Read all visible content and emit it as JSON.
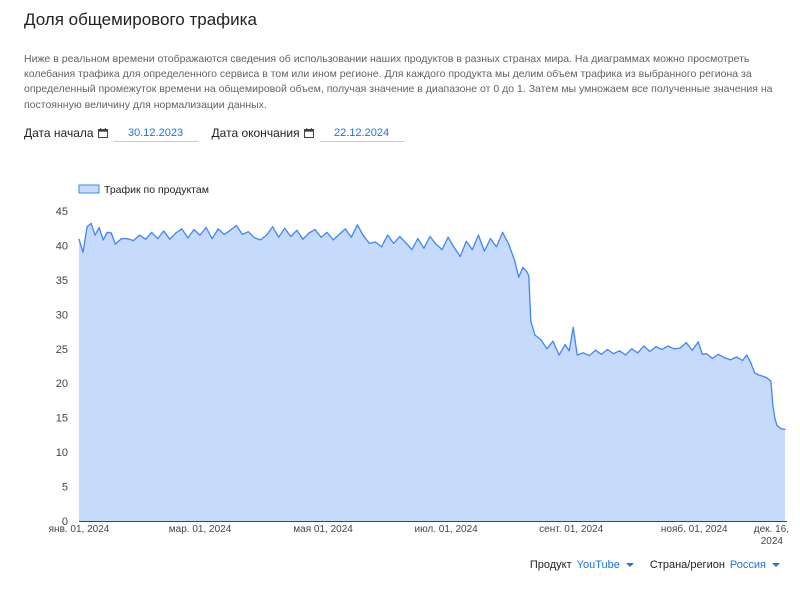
{
  "header": {
    "title": "Доля общемирового трафика",
    "description": "Ниже в реальном времени отображаются сведения об использовании наших продуктов в разных странах мира. На диаграммах можно просмотреть колебания трафика для определенного сервиса в том или ином регионе. Для каждого продукта мы делим объем трафика из выбранного региона за определенный промежуток времени на общемировой объем, получая значение в диапазоне от 0 до 1. Затем мы умножаем все полученные значения на постоянную величину для нормализации данных."
  },
  "date_filters": {
    "start_label": "Дата начала",
    "start_value": "30.12.2023",
    "end_label": "Дата окончания",
    "end_value": "22.12.2024",
    "icon": "calendar-icon"
  },
  "footer": {
    "product_label": "Продукт",
    "product_value": "YouTube",
    "region_label": "Страна/регион",
    "region_value": "Россия"
  },
  "colors": {
    "accent": "#1a73e8",
    "line": "#4285f4",
    "fill": "#c6dafc"
  },
  "chart_data": {
    "type": "area",
    "legend": {
      "label": "Трафик по продуктам",
      "position": "top-left"
    },
    "ylim": [
      0,
      45
    ],
    "yticks": [
      "0",
      "5",
      "10",
      "15",
      "20",
      "25",
      "30",
      "35",
      "40",
      "45"
    ],
    "xlim": [
      "2024-01-01",
      "2024-12-16"
    ],
    "xticks": [
      {
        "date": "2024-01-01",
        "label": "янв. 01, 2024"
      },
      {
        "date": "2024-03-01",
        "label": "мар. 01, 2024"
      },
      {
        "date": "2024-05-01",
        "label": "мая 01, 2024"
      },
      {
        "date": "2024-07-01",
        "label": "июл. 01, 2024"
      },
      {
        "date": "2024-09-01",
        "label": "сент. 01, 2024"
      },
      {
        "date": "2024-11-01",
        "label": "нояб. 01, 2024"
      },
      {
        "date": "2024-12-16",
        "label": "дек. 16, 2024"
      }
    ],
    "grid": false,
    "series": [
      {
        "name": "Трафик по продуктам",
        "points": [
          [
            "2024-01-01",
            40.9
          ],
          [
            "2024-01-03",
            39.0
          ],
          [
            "2024-01-05",
            42.7
          ],
          [
            "2024-01-07",
            43.2
          ],
          [
            "2024-01-09",
            41.5
          ],
          [
            "2024-01-11",
            42.6
          ],
          [
            "2024-01-13",
            40.8
          ],
          [
            "2024-01-15",
            41.9
          ],
          [
            "2024-01-17",
            41.8
          ],
          [
            "2024-01-19",
            40.2
          ],
          [
            "2024-01-22",
            41.0
          ],
          [
            "2024-01-25",
            41.0
          ],
          [
            "2024-01-28",
            40.7
          ],
          [
            "2024-01-31",
            41.5
          ],
          [
            "2024-02-03",
            40.9
          ],
          [
            "2024-02-06",
            41.9
          ],
          [
            "2024-02-09",
            41.0
          ],
          [
            "2024-02-12",
            42.1
          ],
          [
            "2024-02-15",
            40.9
          ],
          [
            "2024-02-18",
            41.8
          ],
          [
            "2024-02-21",
            42.4
          ],
          [
            "2024-02-24",
            41.1
          ],
          [
            "2024-02-27",
            42.3
          ],
          [
            "2024-03-01",
            41.5
          ],
          [
            "2024-03-04",
            42.6
          ],
          [
            "2024-03-07",
            41.0
          ],
          [
            "2024-03-10",
            42.4
          ],
          [
            "2024-03-13",
            41.6
          ],
          [
            "2024-03-16",
            42.2
          ],
          [
            "2024-03-19",
            42.9
          ],
          [
            "2024-03-22",
            41.6
          ],
          [
            "2024-03-25",
            42.0
          ],
          [
            "2024-03-28",
            41.1
          ],
          [
            "2024-03-31",
            40.8
          ],
          [
            "2024-04-03",
            41.5
          ],
          [
            "2024-04-06",
            42.7
          ],
          [
            "2024-04-09",
            41.2
          ],
          [
            "2024-04-12",
            42.5
          ],
          [
            "2024-04-15",
            41.3
          ],
          [
            "2024-04-18",
            42.2
          ],
          [
            "2024-04-21",
            40.9
          ],
          [
            "2024-04-24",
            41.8
          ],
          [
            "2024-04-27",
            42.3
          ],
          [
            "2024-04-30",
            41.2
          ],
          [
            "2024-05-03",
            41.9
          ],
          [
            "2024-05-06",
            40.8
          ],
          [
            "2024-05-09",
            41.6
          ],
          [
            "2024-05-12",
            42.4
          ],
          [
            "2024-05-15",
            41.2
          ],
          [
            "2024-05-18",
            43.0
          ],
          [
            "2024-05-21",
            41.4
          ],
          [
            "2024-05-24",
            40.3
          ],
          [
            "2024-05-27",
            40.5
          ],
          [
            "2024-05-30",
            39.8
          ],
          [
            "2024-06-02",
            41.5
          ],
          [
            "2024-06-05",
            40.3
          ],
          [
            "2024-06-08",
            41.3
          ],
          [
            "2024-06-11",
            40.4
          ],
          [
            "2024-06-14",
            39.4
          ],
          [
            "2024-06-17",
            41.0
          ],
          [
            "2024-06-20",
            39.6
          ],
          [
            "2024-06-23",
            41.3
          ],
          [
            "2024-06-26",
            40.2
          ],
          [
            "2024-06-29",
            39.4
          ],
          [
            "2024-07-02",
            41.2
          ],
          [
            "2024-07-05",
            39.7
          ],
          [
            "2024-07-08",
            38.4
          ],
          [
            "2024-07-11",
            40.6
          ],
          [
            "2024-07-14",
            39.4
          ],
          [
            "2024-07-17",
            41.5
          ],
          [
            "2024-07-20",
            39.2
          ],
          [
            "2024-07-23",
            41.0
          ],
          [
            "2024-07-26",
            39.8
          ],
          [
            "2024-07-29",
            41.9
          ],
          [
            "2024-08-01",
            40.2
          ],
          [
            "2024-08-04",
            37.8
          ],
          [
            "2024-08-06",
            35.4
          ],
          [
            "2024-08-08",
            36.8
          ],
          [
            "2024-08-10",
            36.2
          ],
          [
            "2024-08-11",
            35.6
          ],
          [
            "2024-08-12",
            29.0
          ],
          [
            "2024-08-14",
            27.0
          ],
          [
            "2024-08-17",
            26.3
          ],
          [
            "2024-08-20",
            25.0
          ],
          [
            "2024-08-23",
            26.1
          ],
          [
            "2024-08-26",
            24.1
          ],
          [
            "2024-08-29",
            25.6
          ],
          [
            "2024-08-31",
            24.7
          ],
          [
            "2024-09-02",
            28.1
          ],
          [
            "2024-09-04",
            24.1
          ],
          [
            "2024-09-07",
            24.4
          ],
          [
            "2024-09-10",
            24.0
          ],
          [
            "2024-09-13",
            24.8
          ],
          [
            "2024-09-16",
            24.2
          ],
          [
            "2024-09-19",
            24.9
          ],
          [
            "2024-09-22",
            24.3
          ],
          [
            "2024-09-25",
            24.7
          ],
          [
            "2024-09-28",
            24.1
          ],
          [
            "2024-10-01",
            25.0
          ],
          [
            "2024-10-04",
            24.4
          ],
          [
            "2024-10-07",
            25.4
          ],
          [
            "2024-10-10",
            24.6
          ],
          [
            "2024-10-13",
            25.3
          ],
          [
            "2024-10-16",
            24.9
          ],
          [
            "2024-10-19",
            25.4
          ],
          [
            "2024-10-22",
            25.0
          ],
          [
            "2024-10-25",
            25.1
          ],
          [
            "2024-10-28",
            25.9
          ],
          [
            "2024-10-31",
            24.8
          ],
          [
            "2024-11-03",
            26.0
          ],
          [
            "2024-11-05",
            24.2
          ],
          [
            "2024-11-07",
            24.3
          ],
          [
            "2024-11-10",
            23.6
          ],
          [
            "2024-11-13",
            24.2
          ],
          [
            "2024-11-16",
            23.7
          ],
          [
            "2024-11-19",
            23.4
          ],
          [
            "2024-11-22",
            23.8
          ],
          [
            "2024-11-25",
            23.3
          ],
          [
            "2024-11-27",
            24.1
          ],
          [
            "2024-11-29",
            23.0
          ],
          [
            "2024-12-01",
            21.5
          ],
          [
            "2024-12-03",
            21.2
          ],
          [
            "2024-12-05",
            21.0
          ],
          [
            "2024-12-07",
            20.8
          ],
          [
            "2024-12-09",
            20.3
          ],
          [
            "2024-12-10",
            16.8
          ],
          [
            "2024-12-11",
            14.9
          ],
          [
            "2024-12-12",
            13.9
          ],
          [
            "2024-12-14",
            13.4
          ],
          [
            "2024-12-16",
            13.3
          ]
        ]
      }
    ]
  }
}
